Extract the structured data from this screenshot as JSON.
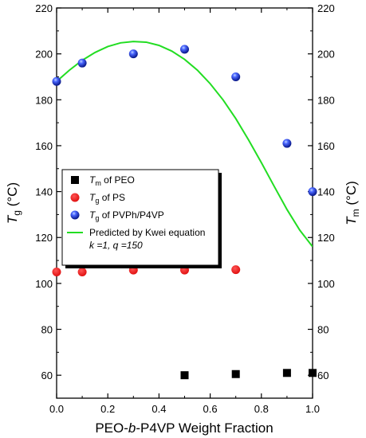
{
  "chart_data": {
    "type": "scatter",
    "xlabel": {
      "pre": "PEO-",
      "italic": "b",
      "post": "-P4VP Weight Fraction"
    },
    "ylabel_left": {
      "italic": "T",
      "sub": "g",
      "unit": " (°C)"
    },
    "ylabel_right": {
      "italic": "T",
      "sub": "m",
      "unit": " (°C)"
    },
    "xlim": [
      0,
      1.0
    ],
    "ylim": [
      50,
      220
    ],
    "x_ticks": [
      "0.0",
      "0.2",
      "0.4",
      "0.6",
      "0.8",
      "1.0"
    ],
    "y_ticks": [
      "60",
      "80",
      "100",
      "120",
      "140",
      "160",
      "180",
      "200",
      "220"
    ],
    "grid": false,
    "legend_position": "center-left",
    "series": [
      {
        "key": "tm_peo",
        "legend": {
          "italic": "T",
          "sub": "m",
          "rest": " of PEO"
        },
        "marker": "square",
        "color": "#000000",
        "points": [
          [
            0.5,
            60
          ],
          [
            0.7,
            60.5
          ],
          [
            0.9,
            61
          ],
          [
            1.0,
            61
          ]
        ]
      },
      {
        "key": "tg_ps",
        "legend": {
          "italic": "T",
          "sub": "g",
          "rest": " of PS"
        },
        "marker": "circle",
        "color": "#ee1111",
        "points": [
          [
            0.0,
            105
          ],
          [
            0.1,
            105
          ],
          [
            0.3,
            105.8
          ],
          [
            0.5,
            105.8
          ],
          [
            0.7,
            106
          ]
        ]
      },
      {
        "key": "tg_pvph",
        "legend": {
          "italic": "T",
          "sub": "g",
          "rest": " of PVPh/P4VP"
        },
        "marker": "sphere",
        "color": "#1f2fd6",
        "points": [
          [
            0.0,
            188
          ],
          [
            0.1,
            196
          ],
          [
            0.3,
            200
          ],
          [
            0.5,
            202
          ],
          [
            0.7,
            190
          ],
          [
            0.9,
            161
          ],
          [
            1.0,
            140
          ]
        ]
      },
      {
        "key": "kwei",
        "legend": {
          "rest": "Predicted by Kwei equation"
        },
        "legend_line2": "k =1, q =150",
        "marker": "line",
        "color": "#22dd22",
        "x": [
          0.0,
          0.05,
          0.1,
          0.15,
          0.2,
          0.25,
          0.3,
          0.35,
          0.4,
          0.45,
          0.5,
          0.55,
          0.6,
          0.65,
          0.7,
          0.75,
          0.8,
          0.85,
          0.9,
          0.95,
          1.0
        ],
        "y": [
          188.0,
          192.9,
          197.2,
          200.6,
          203.2,
          204.8,
          205.4,
          205.1,
          203.7,
          201.2,
          197.6,
          192.9,
          187.0,
          180.0,
          171.8,
          162.5,
          152.6,
          142.3,
          132.2,
          123.2,
          116.0
        ]
      }
    ]
  }
}
